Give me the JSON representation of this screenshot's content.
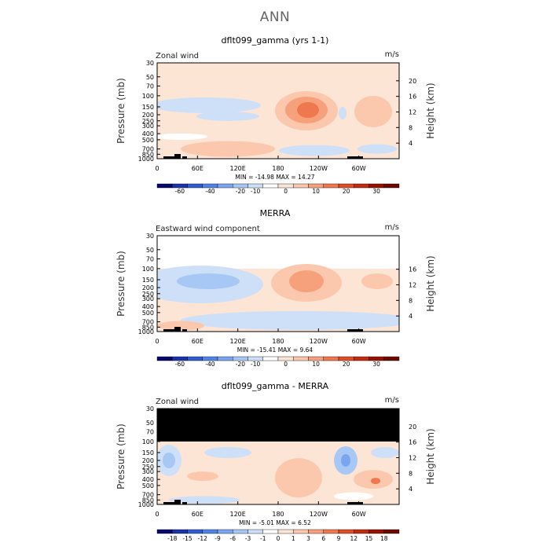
{
  "page_title": "ANN",
  "chart_data": [
    {
      "type": "heatmap",
      "title": "dflt099_gamma (yrs 1-1)",
      "left_label": "Zonal wind",
      "units": "m/s",
      "ylabel": "Pressure (mb)",
      "y2label": "Height (km)",
      "x_ticks": [
        "0",
        "60E",
        "120E",
        "180",
        "120W",
        "60W"
      ],
      "y_ticks": [
        "30",
        "50",
        "70",
        "100",
        "150",
        "200",
        "250",
        "300",
        "400",
        "500",
        "700",
        "850",
        "1000"
      ],
      "y2_ticks": [
        "20",
        "16",
        "12",
        "8",
        "4"
      ],
      "stats": "MIN = -14.98   MAX =  14.27",
      "colorbar": {
        "labels": [
          "-60",
          "-40",
          "-20",
          "-10",
          "0",
          "10",
          "20",
          "30"
        ],
        "colors": [
          "#08086b",
          "#1b32a8",
          "#2f5ccf",
          "#4f84e6",
          "#7aa6f0",
          "#a7c7f5",
          "#cde0f8",
          "#ffffff",
          "#fde5d6",
          "#fbc8ad",
          "#f7a17c",
          "#f0784f",
          "#e04d25",
          "#c42a0d",
          "#961100",
          "#6b0a00"
        ]
      },
      "range": "30-1000"
    },
    {
      "type": "heatmap",
      "title": "MERRA",
      "left_label": "Eastward wind component",
      "units": "m/s",
      "ylabel": "Pressure (mb)",
      "y2label": "Height (km)",
      "x_ticks": [
        "0",
        "60E",
        "120E",
        "180",
        "120W",
        "60W"
      ],
      "y_ticks": [
        "30",
        "50",
        "70",
        "100",
        "150",
        "200",
        "250",
        "300",
        "400",
        "500",
        "700",
        "850",
        "1000"
      ],
      "y2_ticks": [
        "16",
        "12",
        "8",
        "4"
      ],
      "stats": "MIN = -15.41   MAX =   9.64",
      "colorbar": {
        "labels": [
          "-60",
          "-40",
          "-20",
          "-10",
          "0",
          "10",
          "20",
          "30"
        ],
        "colors": [
          "#08086b",
          "#1b32a8",
          "#2f5ccf",
          "#4f84e6",
          "#7aa6f0",
          "#a7c7f5",
          "#cde0f8",
          "#ffffff",
          "#fde5d6",
          "#fbc8ad",
          "#f7a17c",
          "#f0784f",
          "#e04d25",
          "#c42a0d",
          "#961100",
          "#6b0a00"
        ]
      },
      "range": "100-1000"
    },
    {
      "type": "heatmap",
      "title": "dflt099_gamma - MERRA",
      "left_label": "Zonal wind",
      "units": "m/s",
      "ylabel": "Pressure (mb)",
      "y2label": "Height (km)",
      "x_ticks": [
        "0",
        "60E",
        "120E",
        "180",
        "120W",
        "60W"
      ],
      "y_ticks": [
        "30",
        "50",
        "70",
        "100",
        "150",
        "200",
        "250",
        "300",
        "400",
        "500",
        "700",
        "850",
        "1000"
      ],
      "y2_ticks": [
        "20",
        "16",
        "12",
        "8",
        "4"
      ],
      "stats": "MIN =  -5.01   MAX =   6.52",
      "colorbar": {
        "labels": [
          "-18",
          "-15",
          "-12",
          "-9",
          "-6",
          "-3",
          "-1",
          "0",
          "1",
          "3",
          "6",
          "9",
          "12",
          "15",
          "18"
        ],
        "colors": [
          "#08086b",
          "#1b32a8",
          "#2f5ccf",
          "#4f84e6",
          "#7aa6f0",
          "#a7c7f5",
          "#cde0f8",
          "#ffffff",
          "#fde5d6",
          "#fbc8ad",
          "#f7a17c",
          "#f0784f",
          "#e04d25",
          "#c42a0d",
          "#961100",
          "#6b0a00"
        ]
      },
      "range": "masked-above-100"
    }
  ]
}
